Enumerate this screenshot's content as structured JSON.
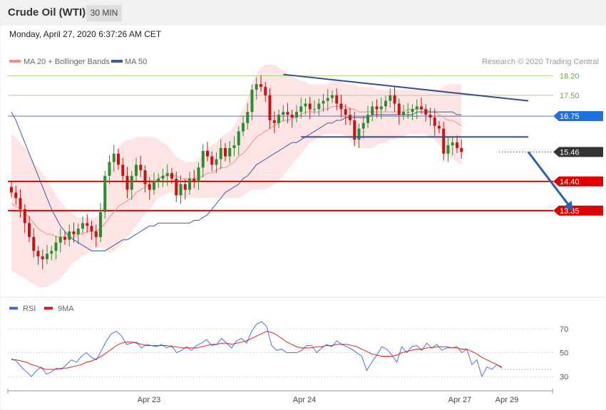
{
  "header": {
    "title": "Crude Oil (WTI)",
    "timeframe_button": "30 MIN"
  },
  "datetime": "Monday, April 27, 2020 6:37:26 AM CET",
  "copyright": "Research © 2020 Trading Central",
  "colors": {
    "up_candle": "#2e8b2e",
    "down_candle": "#cc1111",
    "ma20": "#f08c8c",
    "ma50": "#3a5ba0",
    "bollinger_fill": "#fde0e0",
    "resistance_lines": "#a8d88a",
    "pivot_line": "#3d7bd8",
    "support_lines": "#e00000",
    "current_price": "#333333",
    "trend_lines": "#3a4b8c",
    "arrow": "#2e5fa8",
    "rsi": "#4a74d0",
    "rsi_9ma": "#dd2222"
  },
  "chart_data": [
    {
      "type": "candlestick",
      "title": "Crude Oil (WTI)",
      "timeframe": "30 MIN",
      "ylim": [
        10.4,
        18.7
      ],
      "legend": [
        {
          "label": "MA 20 + Bollinger Bands",
          "color": "#f08c8c"
        },
        {
          "label": "MA 50",
          "color": "#3a5ba0"
        }
      ],
      "x_tick_labels": [
        "Apr 23",
        "Apr 24",
        "Apr 27",
        "Apr 29"
      ],
      "levels": [
        {
          "label": "18.20",
          "value": 18.2,
          "kind": "resistance"
        },
        {
          "label": "17.50",
          "value": 17.5,
          "kind": "resistance"
        },
        {
          "label": "16.75",
          "value": 16.75,
          "kind": "pivot"
        },
        {
          "label": "15.46",
          "value": 15.46,
          "kind": "current"
        },
        {
          "label": "14.40",
          "value": 14.4,
          "kind": "support"
        },
        {
          "label": "13.35",
          "value": 13.35,
          "kind": "support"
        }
      ],
      "closes": [
        14.0,
        13.8,
        13.4,
        12.9,
        12.4,
        11.9,
        11.7,
        11.6,
        11.8,
        11.9,
        12.2,
        12.4,
        12.3,
        12.6,
        12.5,
        12.7,
        12.9,
        12.8,
        12.6,
        12.4,
        13.3,
        14.6,
        15.1,
        15.4,
        15.0,
        14.6,
        14.1,
        14.6,
        15.0,
        14.8,
        14.3,
        14.1,
        14.4,
        14.5,
        14.6,
        14.7,
        14.5,
        13.9,
        14.3,
        14.1,
        14.5,
        14.4,
        14.9,
        15.5,
        15.3,
        15.0,
        15.2,
        15.6,
        15.3,
        15.6,
        15.7,
        16.2,
        16.5,
        16.9,
        17.7,
        17.9,
        17.8,
        17.5,
        16.6,
        16.5,
        16.8,
        16.9,
        16.8,
        16.7,
        16.9,
        17.1,
        17.2,
        17.0,
        17.0,
        17.2,
        17.3,
        17.4,
        17.5,
        17.2,
        17.0,
        16.8,
        16.6,
        15.9,
        16.3,
        16.5,
        16.8,
        17.1,
        17.0,
        17.1,
        17.3,
        17.5,
        17.2,
        16.8,
        16.9,
        16.9,
        17.0,
        17.1,
        17.0,
        16.8,
        16.7,
        16.4,
        16.3,
        15.4,
        15.7,
        15.8,
        15.6,
        15.46
      ],
      "ma20": [
        13.6,
        13.5,
        13.4,
        13.3,
        13.1,
        12.9,
        12.7,
        12.6,
        12.5,
        12.5,
        12.4,
        12.4,
        12.4,
        12.4,
        12.4,
        12.5,
        12.5,
        12.6,
        12.6,
        12.6,
        12.7,
        12.9,
        13.1,
        13.3,
        13.5,
        13.6,
        13.7,
        13.8,
        14.0,
        14.1,
        14.2,
        14.3,
        14.4,
        14.5,
        14.6,
        14.6,
        14.6,
        14.6,
        14.5,
        14.5,
        14.5,
        14.5,
        14.5,
        14.6,
        14.7,
        14.7,
        14.8,
        14.9,
        14.9,
        15.0,
        15.1,
        15.3,
        15.4,
        15.6,
        15.8,
        16.0,
        16.1,
        16.2,
        16.3,
        16.4,
        16.5,
        16.6,
        16.6,
        16.7,
        16.7,
        16.8,
        16.9,
        16.9,
        16.9,
        16.9,
        17.0,
        17.0,
        17.1,
        17.1,
        17.1,
        17.1,
        17.0,
        17.0,
        16.9,
        16.9,
        16.9,
        16.9,
        16.9,
        16.9,
        16.9,
        16.9,
        16.9,
        16.9,
        16.9,
        17.0,
        17.0,
        17.0,
        17.0,
        17.0,
        16.9,
        16.9,
        16.8,
        16.7,
        16.6,
        16.6,
        16.5,
        16.4
      ],
      "bb_upper": [
        16.1,
        16.0,
        15.8,
        15.6,
        15.4,
        15.1,
        14.9,
        14.7,
        14.4,
        14.2,
        13.9,
        13.7,
        13.5,
        13.3,
        13.2,
        13.1,
        13.1,
        13.1,
        13.1,
        13.1,
        13.2,
        14.0,
        14.7,
        15.2,
        15.6,
        15.8,
        15.9,
        15.9,
        16.0,
        16.0,
        16.0,
        16.0,
        16.0,
        15.9,
        15.8,
        15.7,
        15.5,
        15.3,
        15.2,
        15.1,
        15.1,
        15.1,
        15.2,
        15.4,
        15.6,
        15.7,
        15.8,
        16.0,
        16.1,
        16.2,
        16.4,
        16.7,
        17.0,
        17.4,
        17.9,
        18.3,
        18.5,
        18.6,
        18.6,
        18.6,
        18.5,
        18.4,
        18.3,
        18.2,
        18.1,
        18.0,
        18.0,
        17.9,
        17.9,
        17.9,
        17.9,
        17.9,
        18.0,
        18.0,
        18.0,
        17.9,
        17.9,
        17.9,
        17.8,
        17.8,
        17.8,
        17.8,
        17.7,
        17.7,
        17.7,
        17.7,
        17.7,
        17.7,
        17.7,
        17.7,
        17.7,
        17.7,
        17.7,
        17.7,
        17.7,
        17.7,
        17.7,
        17.8,
        17.9,
        17.9,
        17.9,
        17.9
      ],
      "bb_lower": [
        11.2,
        11.1,
        11.0,
        10.9,
        10.8,
        10.7,
        10.6,
        10.6,
        10.6,
        10.7,
        10.8,
        10.9,
        11.1,
        11.3,
        11.5,
        11.6,
        11.7,
        11.8,
        11.9,
        12.0,
        12.0,
        11.9,
        11.8,
        11.9,
        12.0,
        12.2,
        12.4,
        12.6,
        12.8,
        13.0,
        13.2,
        13.4,
        13.6,
        13.8,
        13.9,
        14.0,
        14.0,
        13.9,
        13.8,
        13.8,
        13.8,
        13.8,
        13.8,
        13.8,
        13.8,
        13.8,
        13.8,
        13.8,
        13.8,
        13.8,
        13.8,
        13.8,
        13.9,
        14.0,
        14.1,
        14.1,
        14.1,
        14.1,
        14.2,
        14.3,
        14.4,
        14.6,
        14.8,
        15.0,
        15.2,
        15.4,
        15.6,
        15.8,
        15.9,
        16.0,
        16.1,
        16.1,
        16.1,
        16.1,
        16.1,
        16.0,
        15.9,
        15.7,
        15.6,
        15.6,
        15.6,
        15.6,
        15.7,
        15.8,
        15.8,
        15.9,
        15.9,
        16.0,
        16.0,
        16.1,
        16.1,
        16.1,
        16.1,
        16.1,
        16.0,
        15.9,
        15.7,
        15.5,
        15.3,
        15.2,
        15.1,
        15.0
      ],
      "ma50": [
        16.9,
        16.6,
        16.2,
        15.8,
        15.4,
        15.0,
        14.6,
        14.2,
        13.8,
        13.4,
        13.1,
        12.8,
        12.6,
        12.4,
        12.3,
        12.2,
        12.1,
        12.0,
        11.9,
        11.9,
        11.9,
        11.9,
        12.0,
        12.1,
        12.2,
        12.3,
        12.3,
        12.4,
        12.5,
        12.6,
        12.7,
        12.8,
        12.8,
        12.9,
        12.9,
        12.9,
        12.9,
        12.9,
        12.9,
        12.9,
        12.9,
        13.0,
        13.0,
        13.1,
        13.2,
        13.4,
        13.6,
        13.8,
        14.0,
        14.1,
        14.2,
        14.3,
        14.5,
        14.6,
        14.8,
        15.0,
        15.1,
        15.2,
        15.3,
        15.4,
        15.5,
        15.6,
        15.7,
        15.8,
        15.8,
        15.9,
        16.0,
        16.1,
        16.2,
        16.3,
        16.4,
        16.5,
        16.5,
        16.6,
        16.6,
        16.7,
        16.7,
        16.7,
        16.7,
        16.7,
        16.7,
        16.8,
        16.8,
        16.8,
        16.8,
        16.8,
        16.8,
        16.8,
        16.8,
        16.8,
        16.8,
        16.9,
        16.9,
        16.9,
        16.9,
        16.9,
        16.9,
        16.9,
        16.9,
        16.9,
        16.8,
        16.8
      ],
      "trend_lines": [
        {
          "name": "descending resistance",
          "from": [
            61,
            18.25
          ],
          "to": [
            116,
            17.3
          ]
        },
        {
          "name": "horizontal support",
          "from": [
            65,
            16.0
          ],
          "to": [
            116,
            16.0
          ]
        }
      ],
      "projection_arrow": {
        "from": [
          116,
          15.46
        ],
        "to": [
          126,
          13.35
        ]
      }
    },
    {
      "type": "line",
      "title": "RSI",
      "legend": [
        {
          "label": "RSI",
          "color": "#4a74d0"
        },
        {
          "label": "9MA",
          "color": "#dd2222"
        }
      ],
      "ylim": [
        22,
        76
      ],
      "y_tick_labels": [
        "70",
        "50",
        "30"
      ],
      "series": [
        {
          "name": "RSI",
          "values": [
            45,
            43,
            38,
            34,
            30,
            35,
            38,
            32,
            34,
            37,
            36,
            40,
            44,
            42,
            47,
            50,
            46,
            44,
            52,
            60,
            66,
            68,
            64,
            57,
            58,
            59,
            54,
            57,
            56,
            55,
            57,
            54,
            56,
            50,
            52,
            55,
            52,
            56,
            58,
            61,
            56,
            57,
            62,
            58,
            54,
            60,
            62,
            58,
            68,
            74,
            76,
            72,
            56,
            52,
            53,
            50,
            50,
            50,
            52,
            56,
            56,
            50,
            54,
            57,
            55,
            60,
            57,
            55,
            53,
            50,
            47,
            35,
            42,
            48,
            55,
            53,
            48,
            42,
            55,
            50,
            55,
            56,
            52,
            58,
            54,
            57,
            52,
            54,
            54,
            55,
            50,
            53,
            40,
            44,
            30,
            38,
            36,
            40,
            37
          ]
        },
        {
          "name": "9MA",
          "values": [
            44,
            44,
            43,
            42,
            40,
            39,
            37,
            36,
            36,
            36,
            37,
            37,
            38,
            39,
            40,
            42,
            43,
            45,
            47,
            50,
            53,
            56,
            58,
            59,
            59,
            58,
            57,
            56,
            56,
            56,
            56,
            56,
            55,
            55,
            54,
            54,
            54,
            54,
            55,
            56,
            57,
            57,
            58,
            58,
            57,
            58,
            59,
            60,
            62,
            64,
            66,
            68,
            67,
            65,
            62,
            59,
            57,
            55,
            54,
            54,
            54,
            55,
            55,
            56,
            56,
            57,
            57,
            57,
            56,
            55,
            53,
            51,
            49,
            48,
            47,
            47,
            47,
            48,
            50,
            51,
            52,
            53,
            53,
            54,
            54,
            55,
            55,
            55,
            54,
            54,
            53,
            53,
            51,
            49,
            46,
            44,
            42,
            40,
            38
          ]
        }
      ]
    }
  ]
}
